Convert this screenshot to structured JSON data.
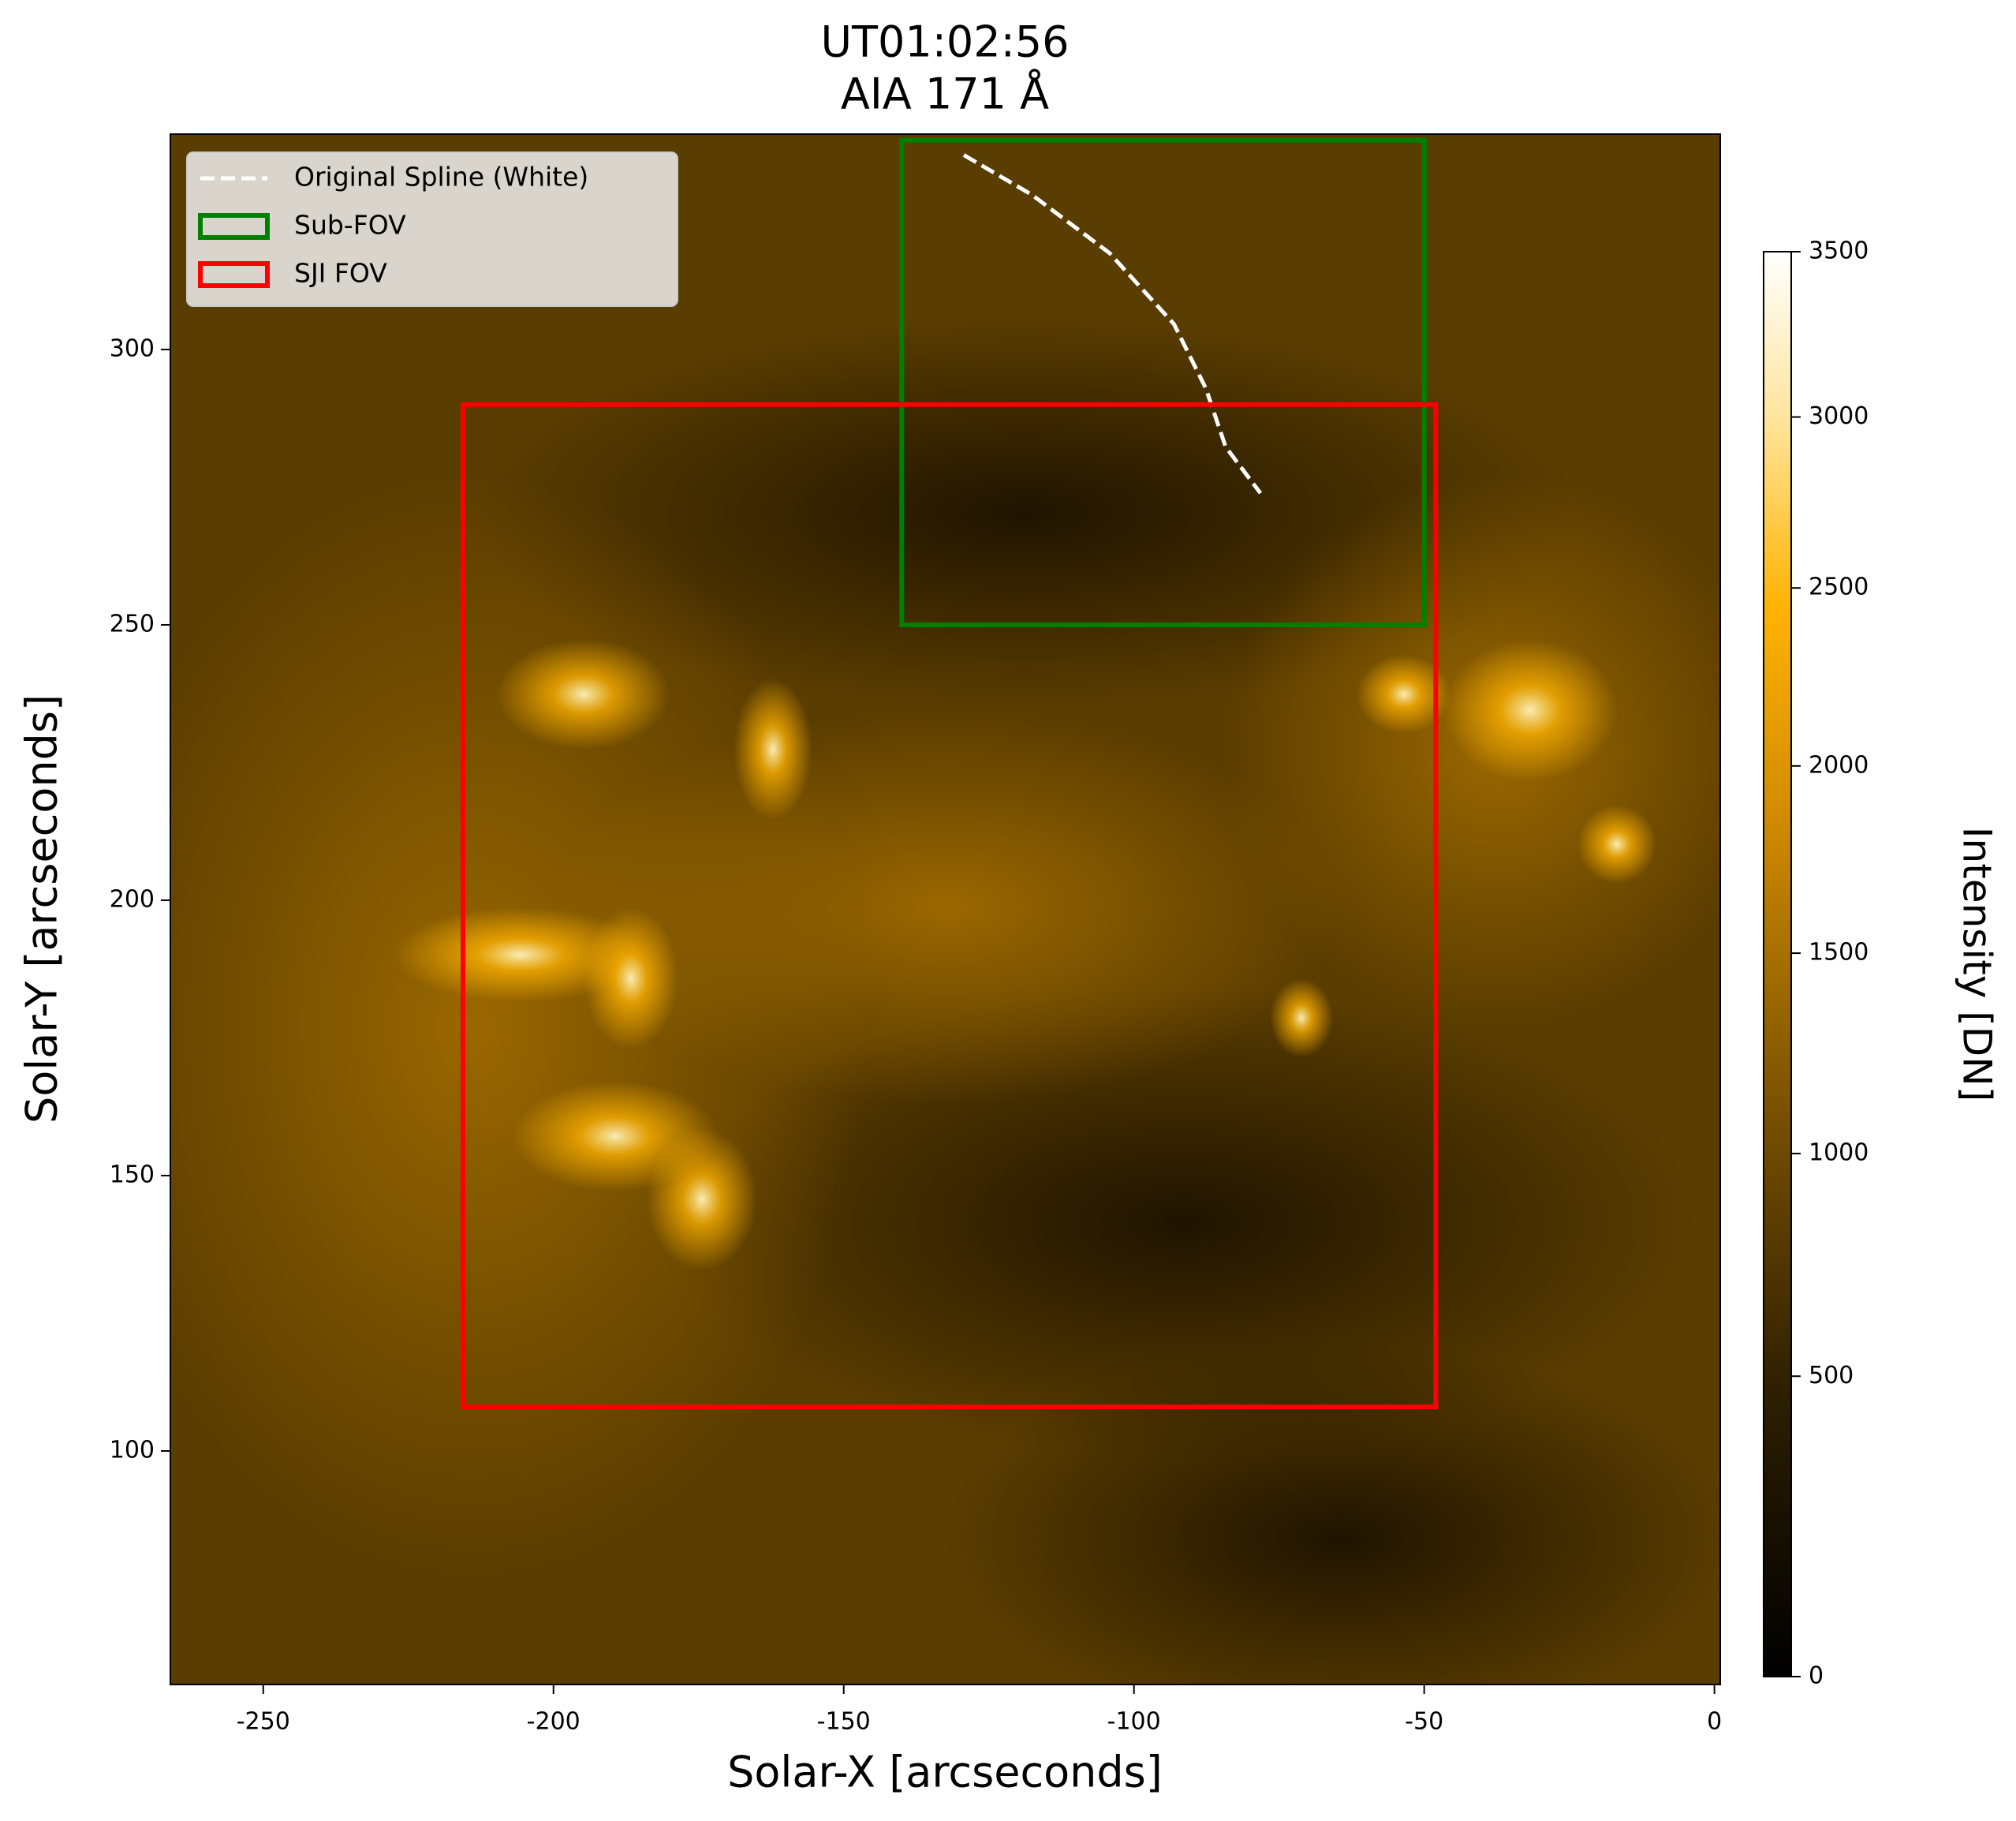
{
  "chart_data": {
    "type": "image",
    "title": "UT01:02:56",
    "subtitle": "AIA 171 Å",
    "x_label": "Solar-X [arcseconds]",
    "y_label": "Solar-Y [arcseconds]",
    "xlim": [
      -266,
      1
    ],
    "ylim": [
      57.6,
      339.1
    ],
    "xticks": [
      -250,
      -200,
      -150,
      -100,
      -50,
      0
    ],
    "yticks": [
      100,
      150,
      200,
      250,
      300
    ],
    "colormap": "sdoaia171",
    "legend": "upper left",
    "series": [
      {
        "name": "Original Spline (White)",
        "type": "line",
        "color": "#ffffff",
        "dash": true,
        "x": [
          -129.3,
          -117.6,
          -104.2,
          -93.1,
          -87.6,
          -84.2,
          -78.2
        ],
        "y": [
          335.3,
          328.1,
          317.5,
          304.6,
          292.9,
          282.3,
          273.9
        ]
      },
      {
        "name": "Sub-FOV",
        "type": "rect",
        "color": "#008000",
        "x": [
          -140,
          -50
        ],
        "y": [
          250,
          338
        ]
      },
      {
        "name": "SJI FOV",
        "type": "rect",
        "color": "#ff0000",
        "x": [
          -215.6,
          -48
        ],
        "y": [
          108,
          290
        ]
      }
    ],
    "colorbar": {
      "label": "Intensity [DN]",
      "lim": [
        0,
        3500
      ],
      "ticks": [
        0,
        500,
        1000,
        1500,
        2000,
        2500,
        3000,
        3500
      ],
      "scale": "power",
      "gamma": 0.8
    }
  }
}
